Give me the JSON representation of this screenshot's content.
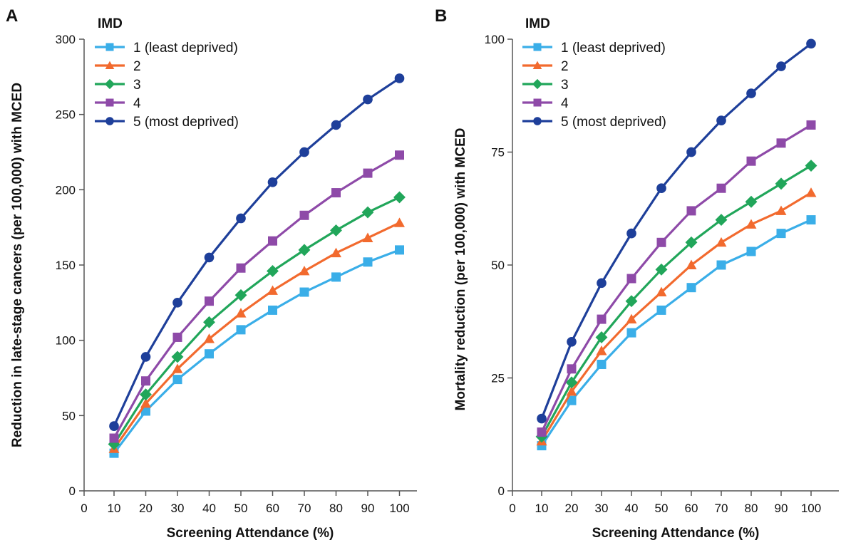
{
  "chart_data": [
    {
      "type": "line",
      "panel_label": "A",
      "xlabel": "Screening Attendance (%)",
      "ylabel": "Reduction in late-stage cancers (per 100,000) with MCED",
      "xlim": [
        0,
        100
      ],
      "ylim": [
        0,
        300
      ],
      "x_ticks": [
        "0",
        "10",
        "20",
        "30",
        "40",
        "50",
        "60",
        "70",
        "80",
        "90",
        "100"
      ],
      "y_ticks": [
        "0",
        "50",
        "100",
        "150",
        "200",
        "250",
        "300"
      ],
      "legend_title": "IMD",
      "legend_position": "top-left",
      "grid": false,
      "x": [
        10,
        20,
        30,
        40,
        50,
        60,
        70,
        80,
        90,
        100
      ],
      "series": [
        {
          "name": "1 (least deprived)",
          "color": "#3aaee8",
          "marker": "square",
          "values": [
            25,
            53,
            74,
            91,
            107,
            120,
            132,
            142,
            152,
            160
          ]
        },
        {
          "name": "2",
          "color": "#f26a2e",
          "marker": "triangle",
          "values": [
            28,
            58,
            81,
            101,
            118,
            133,
            146,
            158,
            168,
            178
          ]
        },
        {
          "name": "3",
          "color": "#21a65a",
          "marker": "diamond",
          "values": [
            31,
            64,
            89,
            112,
            130,
            146,
            160,
            173,
            185,
            195
          ]
        },
        {
          "name": "4",
          "color": "#8e4aa8",
          "marker": "square",
          "values": [
            35,
            73,
            102,
            126,
            148,
            166,
            183,
            198,
            211,
            223
          ]
        },
        {
          "name": "5 (most deprived)",
          "color": "#1e3f9a",
          "marker": "circle",
          "values": [
            43,
            89,
            125,
            155,
            181,
            205,
            225,
            243,
            260,
            274
          ]
        }
      ]
    },
    {
      "type": "line",
      "panel_label": "B",
      "xlabel": "Screening Attendance (%)",
      "ylabel": "Mortality reduction (per 100,000) with MCED",
      "xlim": [
        0,
        100
      ],
      "ylim": [
        0,
        100
      ],
      "x_ticks": [
        "0",
        "10",
        "20",
        "30",
        "40",
        "50",
        "60",
        "70",
        "80",
        "90",
        "100"
      ],
      "y_ticks": [
        "0",
        "25",
        "50",
        "75",
        "100"
      ],
      "legend_title": "IMD",
      "legend_position": "top-left",
      "grid": false,
      "x": [
        10,
        20,
        30,
        40,
        50,
        60,
        70,
        80,
        90,
        100
      ],
      "series": [
        {
          "name": "1 (least deprived)",
          "color": "#3aaee8",
          "marker": "square",
          "values": [
            10,
            20,
            28,
            35,
            40,
            45,
            50,
            53,
            57,
            60
          ]
        },
        {
          "name": "2",
          "color": "#f26a2e",
          "marker": "triangle",
          "values": [
            11,
            22,
            31,
            38,
            44,
            50,
            55,
            59,
            62,
            66
          ]
        },
        {
          "name": "3",
          "color": "#21a65a",
          "marker": "diamond",
          "values": [
            12,
            24,
            34,
            42,
            49,
            55,
            60,
            64,
            68,
            72
          ]
        },
        {
          "name": "4",
          "color": "#8e4aa8",
          "marker": "square",
          "values": [
            13,
            27,
            38,
            47,
            55,
            62,
            67,
            73,
            77,
            81
          ]
        },
        {
          "name": "5 (most deprived)",
          "color": "#1e3f9a",
          "marker": "circle",
          "values": [
            16,
            33,
            46,
            57,
            67,
            75,
            82,
            88,
            94,
            99
          ]
        }
      ]
    }
  ]
}
